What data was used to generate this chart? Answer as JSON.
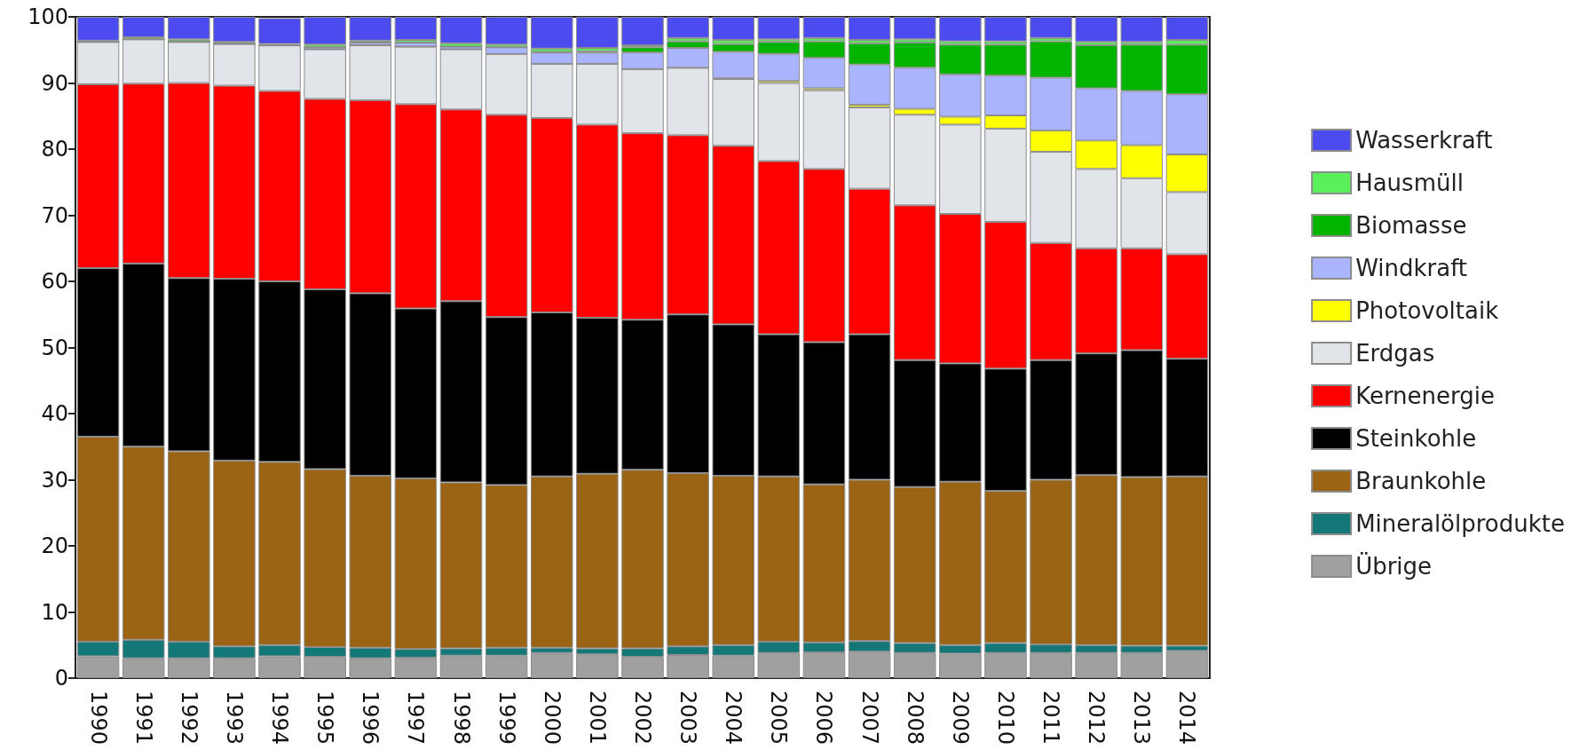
{
  "chart_data": {
    "type": "bar",
    "stacked": true,
    "legend": "right",
    "grid": false,
    "categories": [
      "1990",
      "1991",
      "1992",
      "1993",
      "1994",
      "1995",
      "1996",
      "1997",
      "1998",
      "1999",
      "2000",
      "2001",
      "2002",
      "2003",
      "2004",
      "2005",
      "2006",
      "2007",
      "2008",
      "2009",
      "2010",
      "2011",
      "2012",
      "2013",
      "2014"
    ],
    "ylim": [
      0,
      100
    ],
    "yticks": [
      0,
      10,
      20,
      30,
      40,
      50,
      60,
      70,
      80,
      90,
      100
    ],
    "series": [
      {
        "name": "Übrige",
        "color": "#a0a0a0",
        "values": [
          3.3,
          3.0,
          3.0,
          3.0,
          3.3,
          3.2,
          3.0,
          3.1,
          3.4,
          3.4,
          3.8,
          3.6,
          3.2,
          3.5,
          3.4,
          3.8,
          3.9,
          4.0,
          3.8,
          3.7,
          3.8,
          3.8,
          3.8,
          3.8,
          4.1
        ]
      },
      {
        "name": "Mineralölprodukte",
        "color": "#147878",
        "values": [
          2.2,
          2.8,
          2.5,
          1.8,
          1.7,
          1.5,
          1.6,
          1.3,
          1.1,
          1.2,
          0.8,
          0.9,
          1.3,
          1.3,
          1.6,
          1.7,
          1.5,
          1.6,
          1.5,
          1.3,
          1.5,
          1.3,
          1.2,
          1.1,
          0.8
        ]
      },
      {
        "name": "Braunkohle",
        "color": "#9b6414",
        "values": [
          31.0,
          29.2,
          28.8,
          28.1,
          27.7,
          26.9,
          26.0,
          25.8,
          25.1,
          24.6,
          25.9,
          26.4,
          27.0,
          26.2,
          25.6,
          25.0,
          23.9,
          24.4,
          23.6,
          24.7,
          23.0,
          24.9,
          25.7,
          25.5,
          25.6
        ]
      },
      {
        "name": "Steinkohle",
        "color": "#000000",
        "values": [
          25.5,
          27.7,
          26.2,
          27.5,
          27.3,
          27.2,
          27.6,
          25.7,
          27.4,
          25.4,
          24.8,
          23.6,
          22.7,
          24.0,
          22.9,
          21.5,
          21.5,
          22.0,
          19.2,
          17.9,
          18.5,
          18.1,
          18.4,
          19.2,
          17.8
        ]
      },
      {
        "name": "Kernenergie",
        "color": "#ff0000",
        "values": [
          27.8,
          27.2,
          29.5,
          29.2,
          28.8,
          28.8,
          29.2,
          30.9,
          29.0,
          30.6,
          29.4,
          29.2,
          28.2,
          27.1,
          27.0,
          26.2,
          26.2,
          22.0,
          23.4,
          22.6,
          22.2,
          17.7,
          15.9,
          15.4,
          15.8
        ]
      },
      {
        "name": "Erdgas",
        "color": "#e1e4e8",
        "values": [
          6.4,
          6.7,
          6.2,
          6.3,
          6.9,
          7.5,
          8.3,
          8.7,
          9.1,
          9.2,
          8.2,
          9.2,
          9.7,
          10.2,
          10.1,
          11.8,
          11.9,
          12.3,
          13.7,
          13.5,
          14.1,
          13.8,
          12.0,
          10.6,
          9.4
        ]
      },
      {
        "name": "Photovoltaik",
        "color": "#ffff00",
        "values": [
          0,
          0,
          0,
          0,
          0,
          0,
          0,
          0,
          0,
          0,
          0,
          0,
          0,
          0,
          0.1,
          0.3,
          0.3,
          0.4,
          0.9,
          1.2,
          2.0,
          3.2,
          4.3,
          5.0,
          5.7
        ]
      },
      {
        "name": "Windkraft",
        "color": "#aab4ff",
        "values": [
          0,
          0,
          0.1,
          0.1,
          null,
          0.3,
          0.4,
          0.6,
          0.4,
          1.0,
          1.7,
          1.7,
          2.5,
          3.0,
          4.0,
          4.1,
          4.6,
          6.1,
          6.2,
          6.4,
          6.0,
          8.0,
          7.9,
          8.2,
          9.1
        ]
      },
      {
        "name": "Biomasse",
        "color": "#00b400",
        "values": [
          0,
          0,
          0,
          0,
          0,
          0,
          0,
          0,
          0,
          0,
          0.1,
          0.2,
          0.8,
          1.0,
          1.2,
          1.8,
          2.5,
          3.2,
          3.8,
          4.5,
          4.7,
          5.5,
          6.5,
          7.0,
          7.5
        ]
      },
      {
        "name": "Hausmüll",
        "color": "#5af05a",
        "values": [
          0.2,
          0.3,
          0.3,
          0.2,
          0.2,
          0.4,
          0.3,
          0.4,
          0.5,
          0.4,
          0.5,
          0.5,
          0.3,
          0.5,
          0.6,
          0.4,
          0.5,
          0.5,
          0.5,
          0.5,
          0.5,
          0.5,
          0.5,
          0.4,
          0.7
        ]
      },
      {
        "name": "Wasserkraft",
        "color": "#4b4bf0",
        "values": [
          3.6,
          3.1,
          3.4,
          3.8,
          3.9,
          4.2,
          3.6,
          3.5,
          4.0,
          4.2,
          4.8,
          4.7,
          4.3,
          3.2,
          3.5,
          3.4,
          3.2,
          3.5,
          3.4,
          3.7,
          3.7,
          3.2,
          3.8,
          3.8,
          3.5
        ]
      }
    ]
  }
}
